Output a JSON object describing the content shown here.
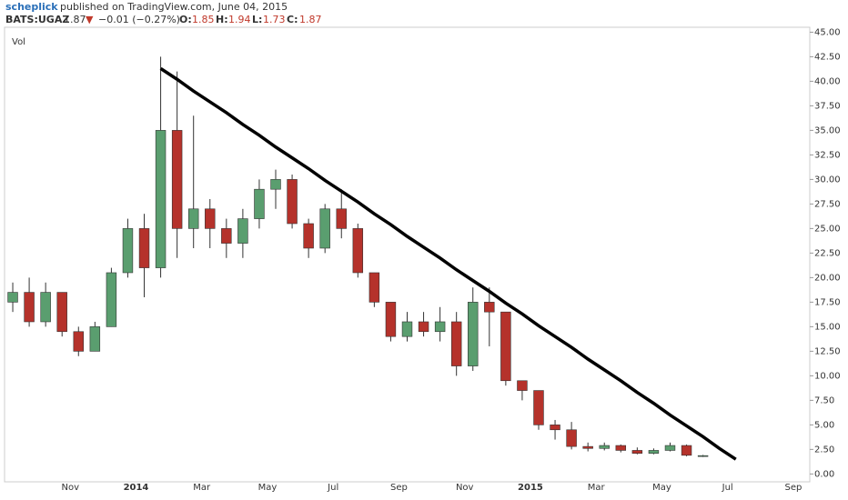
{
  "header": {
    "author": "scheplick",
    "published": "published on TradingView.com, June 04, 2015",
    "symbol": "BATS:UGAZ",
    "last": "1.87",
    "arrow": "▼",
    "change": "−0.01 (−0.27%)",
    "open_label": "O:",
    "open": "1.85",
    "high_label": "H:",
    "high": "1.94",
    "low_label": "L:",
    "low": "1.73",
    "close_label": "C:",
    "close": "1.87"
  },
  "chart_data": {
    "type": "candlestick",
    "pane_label": "Vol",
    "categories": [
      null,
      null,
      null,
      null,
      "Nov",
      null,
      null,
      null,
      "2014",
      null,
      null,
      null,
      "Mar",
      null,
      null,
      null,
      "May",
      null,
      null,
      null,
      "Jul",
      null,
      null,
      null,
      "Sep",
      null,
      null,
      null,
      "Nov",
      null,
      null,
      null,
      "2015",
      null,
      null,
      null,
      "Mar",
      null,
      null,
      null,
      "May",
      null,
      null,
      null,
      "Jul",
      null,
      null,
      null,
      "Sep"
    ],
    "open": [
      17.5,
      18.5,
      15.5,
      18.5,
      14.5,
      12.5,
      15,
      20.5,
      25,
      21,
      35,
      25,
      27,
      25,
      23.5,
      26,
      29,
      30,
      25.5,
      23,
      27,
      25,
      20.5,
      17.5,
      14,
      15.5,
      14.5,
      15.5,
      11,
      17.5,
      16.5,
      9.5,
      8.5,
      5,
      4.5,
      2.8,
      2.6,
      2.9,
      2.4,
      2.1,
      2.4,
      2.9,
      1.85,
      null,
      null,
      null,
      null,
      null,
      null
    ],
    "high": [
      19.5,
      20,
      19.5,
      18.5,
      15,
      15.5,
      21,
      26,
      26.5,
      42.5,
      41,
      36.5,
      28,
      26,
      27,
      30,
      31,
      30.5,
      26,
      27.5,
      29,
      25.5,
      20.5,
      17.5,
      16.5,
      16.5,
      17,
      16.5,
      19,
      19,
      16.5,
      9.5,
      8.5,
      5.5,
      5.3,
      3.2,
      3.2,
      3.0,
      2.7,
      2.6,
      3.2,
      3.0,
      1.94,
      null,
      null,
      null,
      null,
      null,
      null
    ],
    "low": [
      16.5,
      15,
      15,
      14,
      12,
      12.5,
      15,
      20,
      18,
      20,
      22,
      23,
      23,
      22,
      22,
      25,
      27,
      25,
      22,
      22.5,
      24,
      20,
      17,
      13.5,
      13.5,
      14,
      13.5,
      10,
      10.5,
      13,
      9,
      7.5,
      4.5,
      3.5,
      2.5,
      2.3,
      2.4,
      2.2,
      2.0,
      2.0,
      2.3,
      1.8,
      1.73,
      null,
      null,
      null,
      null,
      null,
      null
    ],
    "close": [
      18.5,
      15.5,
      18.5,
      14.5,
      12.5,
      15,
      20.5,
      25,
      21,
      35,
      25,
      27,
      25,
      23.5,
      26,
      29,
      30,
      25.5,
      23,
      27,
      25,
      20.5,
      17.5,
      14,
      15.5,
      14.5,
      15.5,
      11,
      17.5,
      16.5,
      9.5,
      8.5,
      5,
      4.5,
      2.8,
      2.6,
      2.9,
      2.4,
      2.1,
      2.4,
      2.9,
      1.9,
      1.87,
      null,
      null,
      null,
      null,
      null,
      null
    ],
    "up_color": "#5a9e6f",
    "down_color": "#b5322b",
    "trendline": {
      "color": "#000000",
      "values": [
        null,
        null,
        null,
        null,
        null,
        null,
        null,
        null,
        null,
        41.3,
        40.2,
        39.0,
        37.9,
        36.8,
        35.6,
        34.5,
        33.3,
        32.2,
        31.1,
        29.9,
        28.8,
        27.7,
        26.5,
        25.4,
        24.2,
        23.1,
        22.0,
        20.8,
        19.7,
        18.6,
        17.4,
        16.3,
        15.1,
        14.0,
        12.9,
        11.7,
        10.6,
        9.5,
        8.3,
        7.2,
        6.0,
        4.9,
        3.8,
        2.6,
        1.5,
        null,
        null,
        null,
        null
      ]
    },
    "ylim": [
      -0.8,
      45.5
    ],
    "yticks": [
      {
        "value": 0,
        "label": "0.00"
      },
      {
        "value": 2.5,
        "label": "2.50"
      },
      {
        "value": 5,
        "label": "5.00"
      },
      {
        "value": 7.5,
        "label": "7.50"
      },
      {
        "value": 10,
        "label": "10.00"
      },
      {
        "value": 12.5,
        "label": "12.50"
      },
      {
        "value": 15,
        "label": "15.00"
      },
      {
        "value": 17.5,
        "label": "17.50"
      },
      {
        "value": 20,
        "label": "20.00"
      },
      {
        "value": 22.5,
        "label": "22.50"
      },
      {
        "value": 25,
        "label": "25.00"
      },
      {
        "value": 27.5,
        "label": "27.50"
      },
      {
        "value": 30,
        "label": "30.00"
      },
      {
        "value": 32.5,
        "label": "32.50"
      },
      {
        "value": 35,
        "label": "35.00"
      },
      {
        "value": 37.5,
        "label": "37.50"
      },
      {
        "value": 40,
        "label": "40.00"
      },
      {
        "value": 42.5,
        "label": "42.50"
      },
      {
        "value": 45,
        "label": "45.00"
      }
    ]
  }
}
